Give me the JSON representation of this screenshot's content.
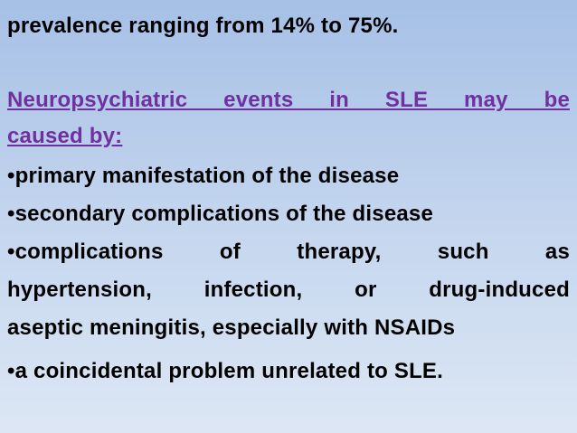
{
  "intro": "prevalence ranging from 14% to 75%.",
  "heading": [
    "Neuropsychiatric events in SLE may be",
    "caused by:"
  ],
  "bullets": [
    [
      "•primary manifestation of the disease"
    ],
    [
      "•secondary complications of the disease"
    ],
    [
      "•complications of therapy, such as",
      "hypertension, infection, or drug-induced",
      "aseptic meningitis, especially with NSAIDs"
    ],
    [
      "•a coincidental problem unrelated to SLE."
    ]
  ]
}
